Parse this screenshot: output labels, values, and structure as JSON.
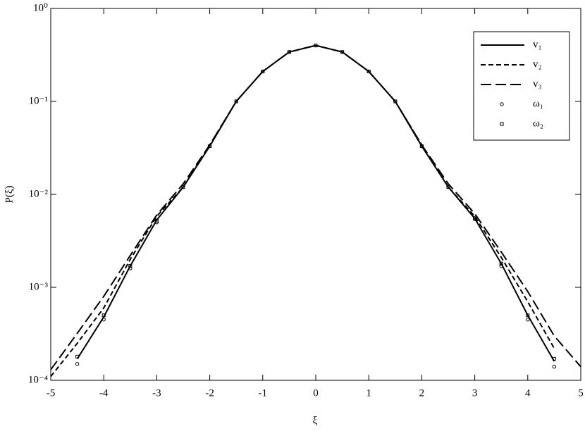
{
  "chart_data": {
    "type": "line",
    "x_label": "ξ",
    "y_label": "P(ξ)",
    "y_scale": "log",
    "xlim": [
      -5,
      5
    ],
    "ylim": [
      0.0001,
      1
    ],
    "xticks": [
      -5,
      -4,
      -3,
      -2,
      -1,
      0,
      1,
      2,
      3,
      4,
      5
    ],
    "yticks": [
      {
        "value": 0.0001,
        "label": "10⁻⁴"
      },
      {
        "value": 0.001,
        "label": "10⁻³"
      },
      {
        "value": 0.01,
        "label": "10⁻²"
      },
      {
        "value": 0.1,
        "label": "10⁻¹"
      },
      {
        "value": 1,
        "label": "10⁰"
      }
    ],
    "legend": "upper right",
    "x": [
      -5,
      -4.5,
      -4,
      -3.5,
      -3,
      -2.5,
      -2,
      -1.5,
      -1,
      -0.5,
      0,
      0.5,
      1,
      1.5,
      2,
      2.5,
      3,
      3.5,
      4,
      4.5,
      5
    ],
    "series": [
      {
        "name": "v₁",
        "color": "#000000",
        "line_style": "solid",
        "values": [
          null,
          0.00017,
          0.00048,
          0.0017,
          0.0053,
          0.012,
          0.033,
          0.1,
          0.21,
          0.34,
          0.4,
          0.34,
          0.21,
          0.1,
          0.033,
          0.012,
          0.0055,
          0.0018,
          0.0005,
          0.00016,
          null
        ]
      },
      {
        "name": "v₂",
        "color": "#000000",
        "line_style": "dashed",
        "values": [
          0.00011,
          0.00025,
          0.0006,
          0.002,
          0.0058,
          0.012,
          0.034,
          0.1,
          0.21,
          0.34,
          0.4,
          0.34,
          0.21,
          0.1,
          0.034,
          0.012,
          0.0058,
          0.0021,
          0.0007,
          0.00022,
          null
        ]
      },
      {
        "name": "v₃",
        "color": "#000000",
        "line_style": "long-dashed",
        "values": [
          0.00013,
          0.00032,
          0.0008,
          0.0022,
          0.006,
          0.013,
          0.034,
          0.1,
          0.21,
          0.34,
          0.4,
          0.34,
          0.21,
          0.1,
          0.034,
          0.013,
          0.0062,
          0.0024,
          0.0009,
          0.0003,
          0.00014
        ]
      },
      {
        "name": "ω₁",
        "color": "#000000",
        "marker": "circle",
        "values": [
          null,
          0.00015,
          0.00045,
          0.0016,
          0.005,
          0.012,
          0.033,
          0.1,
          0.21,
          0.34,
          0.4,
          0.34,
          0.21,
          0.1,
          0.033,
          0.012,
          0.0054,
          0.0017,
          0.00045,
          0.00014,
          null
        ]
      },
      {
        "name": "ω₂",
        "color": "#000000",
        "marker": "square",
        "values": [
          null,
          0.00018,
          0.0005,
          0.0017,
          0.0052,
          0.012,
          0.033,
          0.1,
          0.21,
          0.34,
          0.4,
          0.34,
          0.21,
          0.1,
          0.033,
          0.012,
          0.0056,
          0.0018,
          0.0005,
          0.00017,
          null
        ]
      }
    ]
  }
}
